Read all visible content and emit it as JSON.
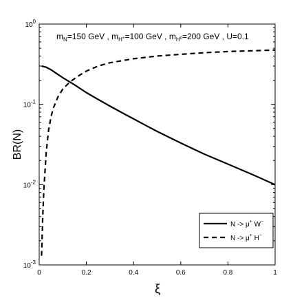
{
  "chart_data": {
    "type": "line",
    "title": "",
    "xlabel": "ξ",
    "ylabel": "BR(N)",
    "xlim": [
      0,
      1
    ],
    "ylim": [
      0.001,
      1
    ],
    "yscale": "log",
    "grid": false,
    "legend_position": "bottom-right",
    "x_ticks": [
      0,
      0.2,
      0.4,
      0.6,
      0.8,
      1
    ],
    "x_tick_labels": [
      "0",
      "0.2",
      "0.4",
      "0.6",
      "0.8",
      "1"
    ],
    "y_ticks": [
      0.001,
      0.01,
      0.1,
      1
    ],
    "y_tick_labels": [
      {
        "base": "10",
        "exp": "-3"
      },
      {
        "base": "10",
        "exp": "-2"
      },
      {
        "base": "10",
        "exp": "-1"
      },
      {
        "base": "10",
        "exp": "0"
      }
    ],
    "annotation": {
      "parts": [
        {
          "t": "m"
        },
        {
          "t": "N",
          "sub": true
        },
        {
          "t": "=150 GeV , m"
        },
        {
          "t": "H",
          "sub": true
        },
        {
          "t": "+",
          "subsup": true
        },
        {
          "t": "=100 GeV , m"
        },
        {
          "t": "H",
          "sub": true
        },
        {
          "t": "0",
          "subsup": true
        },
        {
          "t": "=200 GeV , U=0.1"
        }
      ]
    },
    "series": [
      {
        "style": "solid",
        "legend": [
          {
            "t": "N -> μ"
          },
          {
            "t": "+",
            "sup": true
          },
          {
            "t": " W"
          },
          {
            "t": "−",
            "sup": true
          }
        ],
        "x": [
          0.01,
          0.03,
          0.05,
          0.08,
          0.1,
          0.15,
          0.2,
          0.25,
          0.3,
          0.35,
          0.4,
          0.45,
          0.5,
          0.6,
          0.7,
          0.8,
          0.9,
          1.0
        ],
        "y": [
          0.3,
          0.29,
          0.27,
          0.235,
          0.215,
          0.175,
          0.14,
          0.115,
          0.095,
          0.079,
          0.066,
          0.055,
          0.046,
          0.033,
          0.024,
          0.018,
          0.0135,
          0.01
        ]
      },
      {
        "style": "dashed",
        "legend": [
          {
            "t": "N -> μ"
          },
          {
            "t": "+",
            "sup": true
          },
          {
            "t": " H"
          },
          {
            "t": "−",
            "sup": true
          }
        ],
        "x": [
          0.01,
          0.015,
          0.02,
          0.03,
          0.04,
          0.05,
          0.06,
          0.08,
          0.1,
          0.13,
          0.16,
          0.2,
          0.25,
          0.3,
          0.4,
          0.5,
          0.6,
          0.7,
          0.8,
          0.9,
          1.0
        ],
        "y": [
          0.0013,
          0.004,
          0.009,
          0.026,
          0.048,
          0.07,
          0.09,
          0.125,
          0.155,
          0.19,
          0.22,
          0.26,
          0.3,
          0.33,
          0.37,
          0.4,
          0.42,
          0.44,
          0.455,
          0.465,
          0.475
        ]
      }
    ]
  }
}
